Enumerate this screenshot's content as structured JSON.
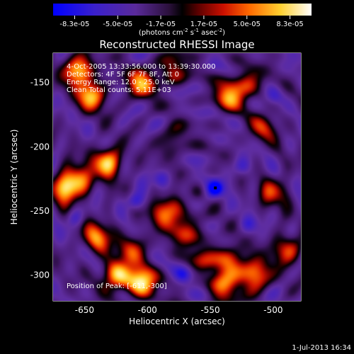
{
  "chart_data": {
    "type": "heatmap",
    "title": "Reconstructed RHESSI Image",
    "xlabel": "Heliocentric X (arcsec)",
    "ylabel": "Heliocentric Y (arcsec)",
    "xlim": [
      -675,
      -478
    ],
    "ylim": [
      -320,
      -127
    ],
    "x_ticks": [
      "-650",
      "-600",
      "-550",
      "-500"
    ],
    "y_ticks": [
      "-150",
      "-200",
      "-250",
      "-300"
    ],
    "colorbar": {
      "ticks": [
        "-8.3e-05",
        "-5.0e-05",
        "-1.7e-05",
        "1.7e-05",
        "5.0e-05",
        "8.3e-05"
      ],
      "range": [
        -8.3e-05,
        8.3e-05
      ],
      "unit_label": "(photons cm",
      "unit_exp1": "-2",
      "unit_mid": " s",
      "unit_exp2": "-1",
      "unit_mid2": " asec",
      "unit_exp3": "-2",
      "unit_end": ")"
    },
    "annotations": [
      "4-Oct-2005 13:33:56.000 to 13:39:30.000",
      "Detectors: 4F 5F 6F 7F 8F, Att 0",
      "Energy Range: 12.0 - 25.0 keV",
      "Clean      Total counts: 5.11E+03"
    ],
    "peak_label": "Position of Peak: [-611,-300]",
    "peak_position": [
      -611,
      -300
    ],
    "marker_position": [
      -546,
      -232
    ],
    "sources": [
      {
        "x": -655,
        "y": -140,
        "v": 0.9
      },
      {
        "x": -645,
        "y": -160,
        "v": 0.8
      },
      {
        "x": -665,
        "y": -232,
        "v": 0.85
      },
      {
        "x": -655,
        "y": -225,
        "v": 0.6
      },
      {
        "x": -632,
        "y": -212,
        "v": 0.9
      },
      {
        "x": -605,
        "y": -150,
        "v": 0.75
      },
      {
        "x": -580,
        "y": -140,
        "v": 0.5
      },
      {
        "x": -535,
        "y": -160,
        "v": 0.75
      },
      {
        "x": -520,
        "y": -150,
        "v": 0.5
      },
      {
        "x": -508,
        "y": -185,
        "v": 0.45
      },
      {
        "x": -500,
        "y": -235,
        "v": 0.5
      },
      {
        "x": -585,
        "y": -250,
        "v": 0.75
      },
      {
        "x": -570,
        "y": -265,
        "v": 0.55
      },
      {
        "x": -640,
        "y": -270,
        "v": 0.7
      },
      {
        "x": -612,
        "y": -280,
        "v": 0.55
      },
      {
        "x": -605,
        "y": -305,
        "v": 1.0
      },
      {
        "x": -625,
        "y": -300,
        "v": 0.85
      },
      {
        "x": -535,
        "y": -290,
        "v": 0.7
      },
      {
        "x": -515,
        "y": -300,
        "v": 0.85
      },
      {
        "x": -490,
        "y": -280,
        "v": 0.6
      },
      {
        "x": -540,
        "y": -310,
        "v": 0.6
      },
      {
        "x": -580,
        "y": -195,
        "v": 0.35
      },
      {
        "x": -555,
        "y": -285,
        "v": 0.4
      }
    ],
    "sinks": [
      {
        "x": -546,
        "y": -232,
        "v": 1.0
      },
      {
        "x": -610,
        "y": -242,
        "v": 0.7
      },
      {
        "x": -590,
        "y": -225,
        "v": 0.55
      },
      {
        "x": -658,
        "y": -255,
        "v": 0.45
      },
      {
        "x": -525,
        "y": -215,
        "v": 0.5
      },
      {
        "x": -500,
        "y": -160,
        "v": 0.45
      },
      {
        "x": -572,
        "y": -300,
        "v": 0.45
      },
      {
        "x": -520,
        "y": -260,
        "v": 0.4
      }
    ]
  },
  "footer": {
    "timestamp": "1-Jul-2013 16:34"
  }
}
